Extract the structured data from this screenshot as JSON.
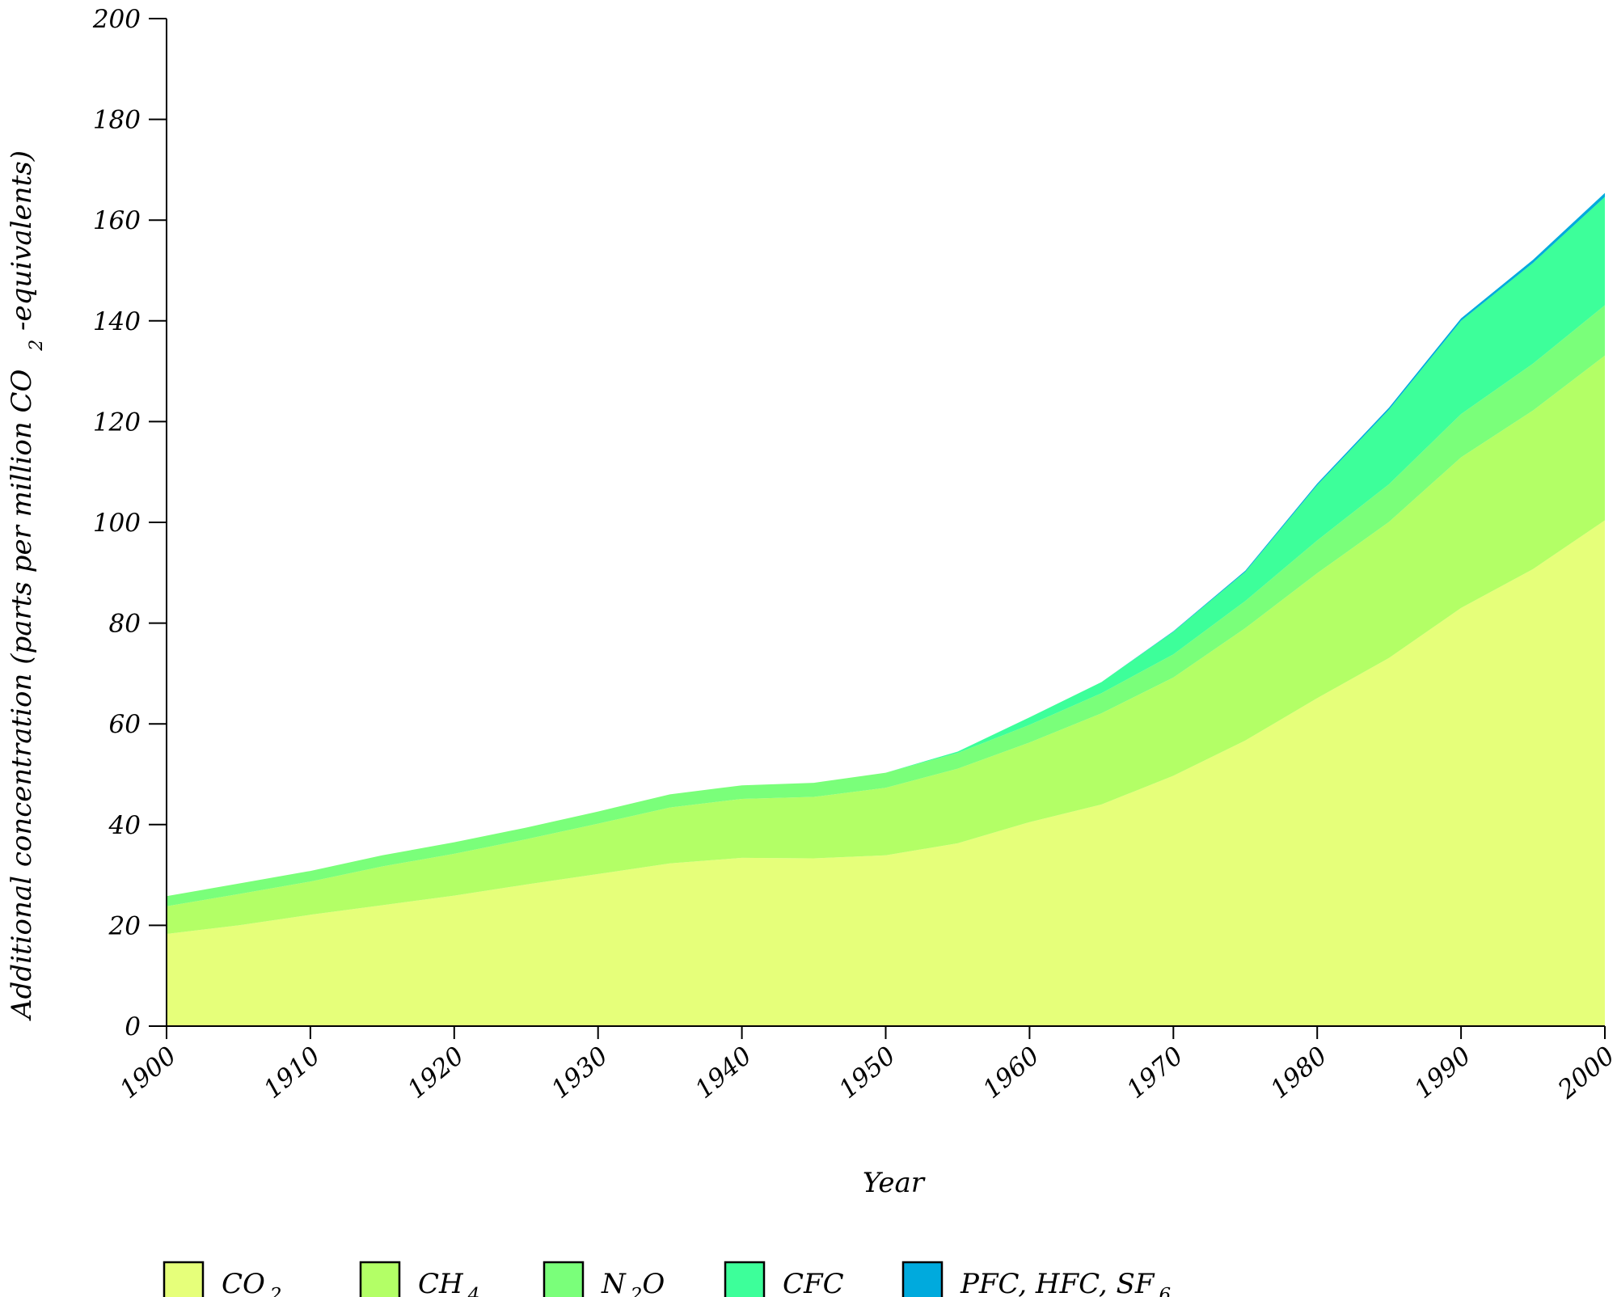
{
  "chart_data": {
    "type": "area",
    "stacked": true,
    "title": "",
    "xlabel": "Year",
    "ylabel": {
      "main": "Additional concentration (parts per million CO",
      "sub": "2",
      "tail": "-equivalents)"
    },
    "xlim": [
      1900,
      2000
    ],
    "ylim": [
      0,
      200
    ],
    "x_ticks": [
      "1900",
      "1910",
      "1920",
      "1930",
      "1940",
      "1950",
      "1960",
      "1970",
      "1980",
      "1990",
      "2000"
    ],
    "y_ticks": [
      "0",
      "20",
      "40",
      "60",
      "80",
      "100",
      "120",
      "140",
      "160",
      "180",
      "200"
    ],
    "grid": false,
    "legend_position": "bottom",
    "x": [
      1900,
      1905,
      1910,
      1915,
      1920,
      1925,
      1930,
      1935,
      1940,
      1945,
      1950,
      1955,
      1960,
      1965,
      1970,
      1975,
      1980,
      1985,
      1990,
      1995,
      2000
    ],
    "series": [
      {
        "name": "CO2",
        "label": {
          "main": "CO",
          "sub": "2",
          "tail": ""
        },
        "color": "#e6ff7a",
        "values": [
          18.3,
          20.0,
          22.1,
          24.0,
          25.9,
          28.1,
          30.2,
          32.3,
          33.4,
          33.3,
          33.9,
          36.3,
          40.5,
          44.0,
          49.7,
          56.7,
          65.1,
          73.1,
          83.0,
          90.7,
          100.4
        ]
      },
      {
        "name": "CH4",
        "label": {
          "main": "CH",
          "sub": "4",
          "tail": ""
        },
        "color": "#b3ff66",
        "values": [
          5.5,
          6.2,
          6.6,
          7.7,
          8.3,
          9.0,
          10.0,
          11.1,
          11.7,
          12.2,
          13.4,
          14.8,
          15.8,
          18.1,
          19.5,
          22.3,
          24.8,
          27.0,
          29.9,
          31.5,
          32.7
        ]
      },
      {
        "name": "N2O",
        "label": {
          "main": "N",
          "sub": "2",
          "tail": "O"
        },
        "color": "#7aff7a",
        "values": [
          2.0,
          2.1,
          2.1,
          2.2,
          2.3,
          2.3,
          2.4,
          2.6,
          2.7,
          2.8,
          3.0,
          3.1,
          3.5,
          4.0,
          4.6,
          5.4,
          6.5,
          7.5,
          8.6,
          9.3,
          10.0
        ]
      },
      {
        "name": "CFC",
        "label": {
          "main": "CFC",
          "sub": "",
          "tail": ""
        },
        "color": "#3dff9a",
        "values": [
          0,
          0,
          0,
          0,
          0,
          0,
          0,
          0,
          0,
          0,
          0,
          0.3,
          1.5,
          2.2,
          4.5,
          5.8,
          11.0,
          14.8,
          18.5,
          20.0,
          21.5
        ]
      },
      {
        "name": "PFC, HFC, SF6",
        "label": {
          "main": "PFC, HFC, SF",
          "sub": "6",
          "tail": ""
        },
        "color": "#00aadd",
        "values": [
          0,
          0,
          0,
          0,
          0,
          0,
          0,
          0,
          0,
          0,
          0,
          0,
          0,
          0,
          0.1,
          0.2,
          0.3,
          0.4,
          0.5,
          0.6,
          0.8
        ]
      }
    ]
  }
}
